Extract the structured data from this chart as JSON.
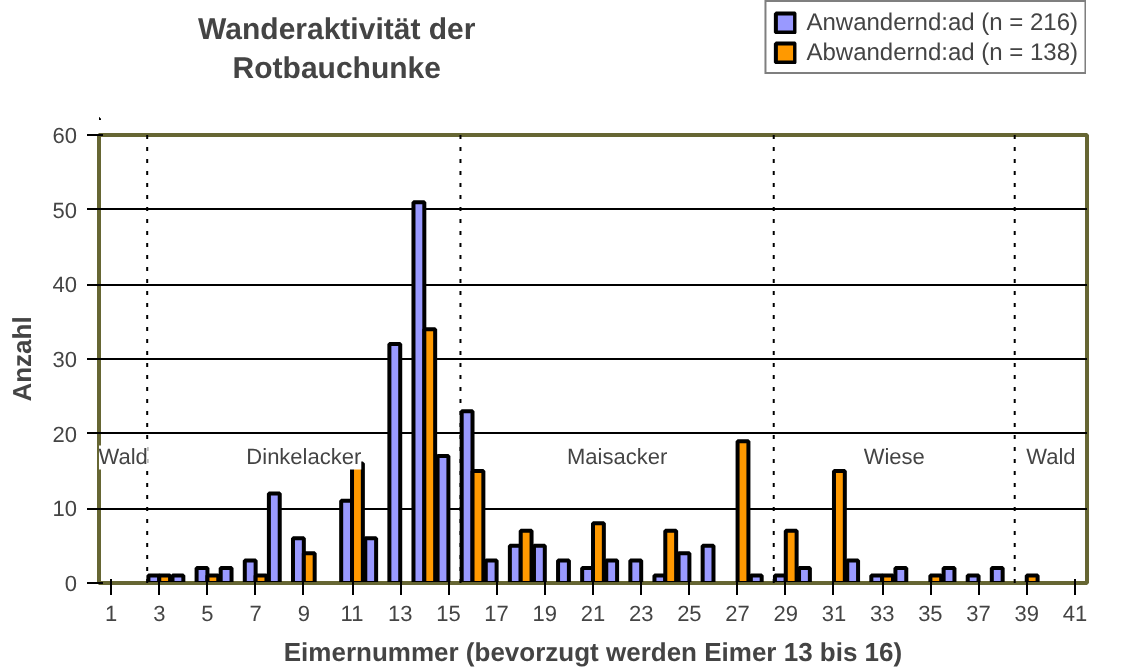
{
  "chart_data": {
    "type": "bar",
    "title": "Wanderaktivität der Rotbauchunke",
    "xlabel": "Eimernummer (bevorzugt werden Eimer 13 bis 16)",
    "ylabel": "Anzahl",
    "x": [
      1,
      2,
      3,
      4,
      5,
      6,
      7,
      8,
      9,
      10,
      11,
      12,
      13,
      14,
      15,
      16,
      17,
      18,
      19,
      20,
      21,
      22,
      23,
      24,
      25,
      26,
      27,
      28,
      29,
      30,
      31,
      32,
      33,
      34,
      35,
      36,
      37,
      38,
      39,
      40,
      41
    ],
    "series": [
      {
        "name": "Anwandernd:ad (n = 216)",
        "color": "#9999ff",
        "values": [
          0,
          0,
          1,
          1,
          2,
          2,
          3,
          12,
          6,
          0,
          11,
          6,
          32,
          51,
          17,
          23,
          3,
          5,
          5,
          3,
          2,
          3,
          3,
          1,
          4,
          5,
          0,
          1,
          1,
          2,
          0,
          3,
          1,
          2,
          0,
          2,
          1,
          2,
          0,
          0,
          0
        ]
      },
      {
        "name": "Abwandernd:ad (n = 138)",
        "color": "#ff9900",
        "values": [
          0,
          0,
          1,
          0,
          1,
          0,
          1,
          0,
          4,
          0,
          16,
          0,
          0,
          34,
          0,
          15,
          0,
          7,
          0,
          0,
          8,
          0,
          0,
          7,
          0,
          0,
          19,
          0,
          7,
          0,
          15,
          0,
          1,
          0,
          1,
          0,
          0,
          0,
          1,
          0,
          0
        ]
      }
    ],
    "xlim": [
      0.5,
      41.5
    ],
    "xticks": [
      1,
      3,
      5,
      7,
      9,
      11,
      13,
      15,
      17,
      19,
      21,
      23,
      25,
      27,
      29,
      31,
      33,
      35,
      37,
      39,
      41
    ],
    "ylim": [
      0,
      60
    ],
    "yticks": [
      0,
      10,
      20,
      30,
      40,
      50,
      60
    ],
    "ref_lines": [
      {
        "axis": "x",
        "value": 2.5,
        "line_style": "dotted"
      },
      {
        "axis": "x",
        "value": 15.5,
        "line_style": "dotted"
      },
      {
        "axis": "x",
        "value": 28.5,
        "line_style": "dotted"
      },
      {
        "axis": "x",
        "value": 38.5,
        "line_style": "dotted"
      }
    ],
    "annotations": [
      "Wald",
      "Dinkelacker",
      "Maisacker",
      "Wiese",
      "Wald"
    ],
    "grid": "y",
    "legend": "top right"
  }
}
